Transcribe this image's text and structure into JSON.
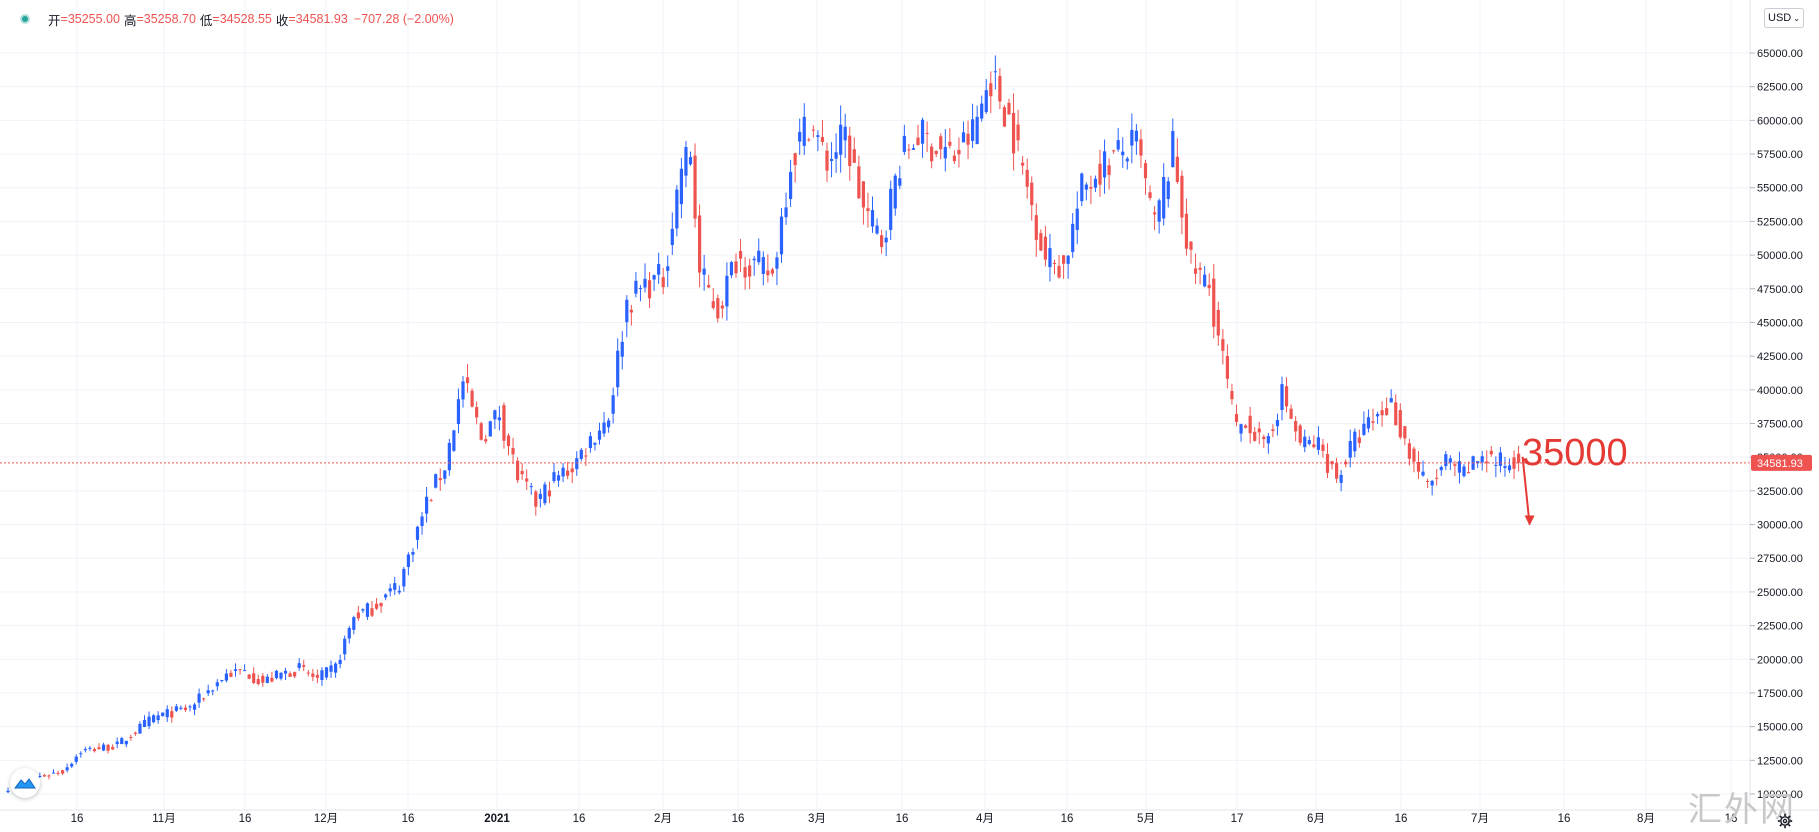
{
  "ohlc": {
    "open_label": "开",
    "open": "=35255.00",
    "high_label": "高",
    "high": "=35258.70",
    "low_label": "低",
    "low": "=34528.55",
    "close_label": "收",
    "close": "=34581.93",
    "change": "−707.28 (−2.00%)"
  },
  "currency": "USD",
  "last_price_label": "34581.93",
  "annotation_text": "35000",
  "watermark_text": "汇外网",
  "colors": {
    "up": "#2962ff",
    "down": "#ef5350",
    "grid": "#f0f3fa",
    "price_line": "#ef5350",
    "annotation": "#e53935"
  },
  "chart_data": {
    "type": "candlestick",
    "symbol_unit": "USD",
    "ylim": [
      8800,
      67500
    ],
    "y_ticks": [
      "10000.00",
      "12500.00",
      "15000.00",
      "17500.00",
      "20000.00",
      "22500.00",
      "25000.00",
      "27500.00",
      "30000.00",
      "32500.00",
      "35000.00",
      "37500.00",
      "40000.00",
      "42500.00",
      "45000.00",
      "47500.00",
      "50000.00",
      "52500.00",
      "55000.00",
      "57500.00",
      "60000.00",
      "62500.00",
      "65000.00"
    ],
    "x_labels": [
      "16",
      "11月",
      "16",
      "12月",
      "16",
      "2021",
      "16",
      "2月",
      "16",
      "3月",
      "16",
      "4月",
      "16",
      "5月",
      "17",
      "6月",
      "16",
      "7月",
      "16",
      "8月",
      "16"
    ],
    "last_price": 34581.93,
    "annotation_value": 35000,
    "keypoints": [
      [
        0,
        10500
      ],
      [
        8,
        11400
      ],
      [
        12,
        11700
      ],
      [
        16,
        13200
      ],
      [
        24,
        13600
      ],
      [
        32,
        15700
      ],
      [
        40,
        16400
      ],
      [
        48,
        18900
      ],
      [
        52,
        19100
      ],
      [
        56,
        18300
      ],
      [
        60,
        18900
      ],
      [
        64,
        19300
      ],
      [
        68,
        18500
      ],
      [
        72,
        19400
      ],
      [
        76,
        23200
      ],
      [
        80,
        23800
      ],
      [
        86,
        25600
      ],
      [
        92,
        31600
      ],
      [
        96,
        34400
      ],
      [
        100,
        40600
      ],
      [
        104,
        36500
      ],
      [
        108,
        38300
      ],
      [
        112,
        33600
      ],
      [
        116,
        31600
      ],
      [
        120,
        33300
      ],
      [
        124,
        34300
      ],
      [
        128,
        36300
      ],
      [
        132,
        38100
      ],
      [
        136,
        46500
      ],
      [
        140,
        47800
      ],
      [
        144,
        48300
      ],
      [
        148,
        56600
      ],
      [
        150,
        57500
      ],
      [
        152,
        48600
      ],
      [
        156,
        45900
      ],
      [
        160,
        49800
      ],
      [
        164,
        49300
      ],
      [
        168,
        48500
      ],
      [
        172,
        57000
      ],
      [
        176,
        60000
      ],
      [
        180,
        56900
      ],
      [
        184,
        58900
      ],
      [
        188,
        53400
      ],
      [
        192,
        51100
      ],
      [
        196,
        57000
      ],
      [
        200,
        59000
      ],
      [
        204,
        58000
      ],
      [
        208,
        57300
      ],
      [
        212,
        59100
      ],
      [
        216,
        63300
      ],
      [
        220,
        60200
      ],
      [
        224,
        55000
      ],
      [
        228,
        49800
      ],
      [
        232,
        49200
      ],
      [
        236,
        54800
      ],
      [
        240,
        56500
      ],
      [
        244,
        57500
      ],
      [
        248,
        58200
      ],
      [
        252,
        52100
      ],
      [
        256,
        57800
      ],
      [
        260,
        49200
      ],
      [
        264,
        47600
      ],
      [
        268,
        40400
      ],
      [
        270,
        36800
      ],
      [
        272,
        38000
      ],
      [
        276,
        35500
      ],
      [
        280,
        39700
      ],
      [
        284,
        36000
      ],
      [
        288,
        35900
      ],
      [
        292,
        33500
      ],
      [
        296,
        36200
      ],
      [
        300,
        37700
      ],
      [
        304,
        39000
      ],
      [
        308,
        35300
      ],
      [
        312,
        32700
      ],
      [
        316,
        34600
      ],
      [
        320,
        33700
      ],
      [
        324,
        35200
      ],
      [
        328,
        34500
      ],
      [
        332,
        34581.93
      ]
    ]
  }
}
